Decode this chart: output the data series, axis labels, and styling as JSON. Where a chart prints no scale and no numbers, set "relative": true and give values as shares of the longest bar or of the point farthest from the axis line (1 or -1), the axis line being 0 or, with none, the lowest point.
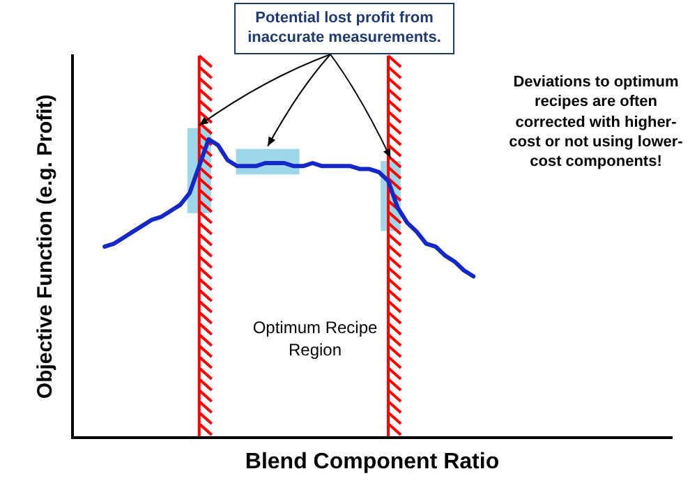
{
  "chart_data": {
    "type": "line",
    "relative": true,
    "categories": [
      null,
      null,
      null,
      null,
      null,
      null,
      null,
      null,
      null,
      null,
      null,
      null,
      null,
      null,
      null,
      null,
      null,
      null,
      null,
      null,
      null,
      null,
      null,
      null,
      null,
      null,
      null,
      null,
      null,
      null,
      null,
      null,
      null,
      null,
      null,
      null,
      null,
      null,
      null,
      null
    ],
    "values": [
      0.64,
      0.65,
      0.67,
      0.69,
      0.71,
      0.73,
      0.74,
      0.76,
      0.78,
      0.82,
      0.91,
      1,
      0.98,
      0.93,
      0.91,
      0.91,
      0.91,
      0.92,
      0.92,
      0.92,
      0.91,
      0.91,
      0.92,
      0.91,
      0.91,
      0.91,
      0.91,
      0.9,
      0.9,
      0.89,
      0.86,
      0.77,
      0.72,
      0.69,
      0.65,
      0.64,
      0.61,
      0.59,
      0.56,
      0.54
    ],
    "color": "#1428c8",
    "tick_labels": false,
    "marker": "none",
    "legend": false,
    "xlabel": "Blend Component Ratio",
    "ylabel": "Objective Function (e.g. Profit)",
    "annotations": [
      "Potential lost profit from inaccurate measurements.",
      "Deviations to optimum recipes are often corrected with higher-cost or not using lower-cost components!",
      "Optimum Recipe Region"
    ]
  }
}
